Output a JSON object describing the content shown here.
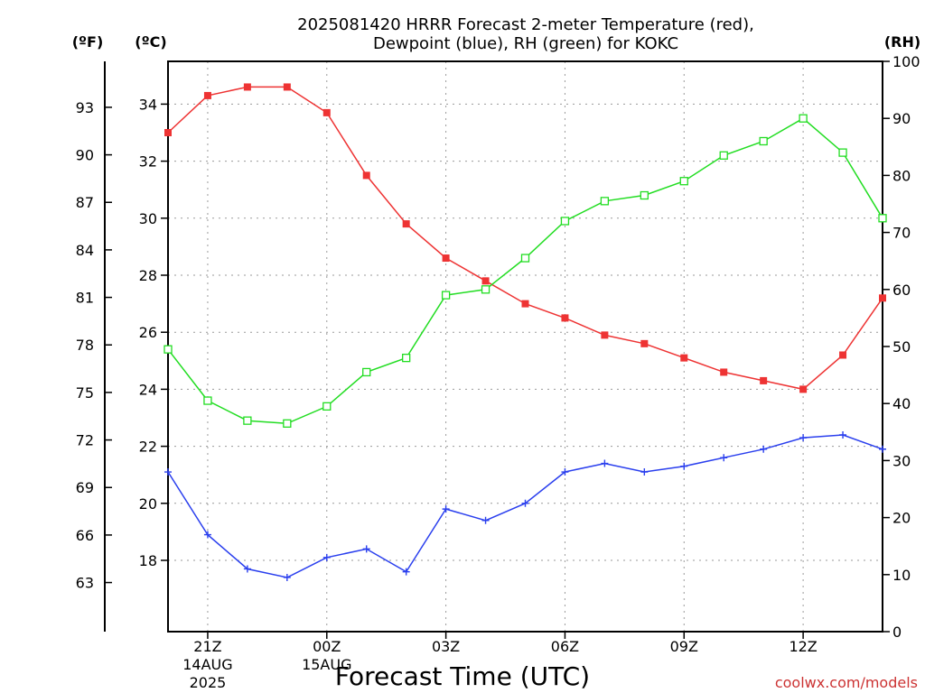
{
  "title_line1": "2025081420 HRRR Forecast 2-meter Temperature (red),",
  "title_line2": "Dewpoint (blue), RH (green) for KOKC",
  "unit_f": "(ºF)",
  "unit_c": "(ºC)",
  "unit_rh": "(RH)",
  "xlabel": "Forecast Time (UTC)",
  "watermark": "coolwx.com/models",
  "colors": {
    "temperature": "#ee3333",
    "dewpoint": "#2a3fee",
    "rh": "#22dd22",
    "grid": "#9a9a9a",
    "watermark": "#cc3333"
  },
  "chart_data": {
    "type": "line",
    "x": [
      20,
      21,
      22,
      23,
      24,
      25,
      26,
      27,
      28,
      29,
      30,
      31,
      32,
      33,
      34,
      35,
      36,
      37,
      38
    ],
    "x_ticks": [
      {
        "x": 21,
        "label": "21Z",
        "sub1": "14AUG",
        "sub2": "2025"
      },
      {
        "x": 24,
        "label": "00Z",
        "sub1": "15AUG",
        "sub2": ""
      },
      {
        "x": 27,
        "label": "03Z",
        "sub1": "",
        "sub2": ""
      },
      {
        "x": 30,
        "label": "06Z",
        "sub1": "",
        "sub2": ""
      },
      {
        "x": 33,
        "label": "09Z",
        "sub1": "",
        "sub2": ""
      },
      {
        "x": 36,
        "label": "12Z",
        "sub1": "",
        "sub2": ""
      }
    ],
    "xlim": [
      20,
      38
    ],
    "y_left_c": {
      "ylim": [
        15.5,
        35.5
      ],
      "ticks": [
        18,
        20,
        22,
        24,
        26,
        28,
        30,
        32,
        34
      ]
    },
    "y_left_f": {
      "ticks": [
        63,
        66,
        69,
        72,
        75,
        78,
        81,
        84,
        87,
        90,
        93
      ]
    },
    "y_right_rh": {
      "ylim": [
        0,
        100
      ],
      "ticks": [
        0,
        10,
        20,
        30,
        40,
        50,
        60,
        70,
        80,
        90,
        100
      ]
    },
    "grid": true,
    "series": [
      {
        "key": "temperature",
        "axis": "c",
        "marker": "filled-square",
        "values": [
          33.0,
          34.3,
          34.6,
          34.6,
          33.7,
          31.5,
          29.8,
          28.6,
          27.8,
          27.0,
          26.5,
          25.9,
          25.6,
          25.1,
          24.6,
          24.3,
          24.0,
          25.2,
          27.2
        ]
      },
      {
        "key": "dewpoint",
        "axis": "c",
        "marker": "plus",
        "values": [
          21.1,
          18.9,
          17.7,
          17.4,
          18.1,
          18.4,
          17.6,
          19.8,
          19.4,
          20.0,
          21.1,
          21.4,
          21.1,
          21.3,
          21.6,
          21.9,
          22.3,
          22.4,
          21.9
        ]
      },
      {
        "key": "rh",
        "axis": "rh",
        "marker": "open-square",
        "values": [
          49.5,
          40.5,
          37.0,
          36.5,
          39.5,
          45.5,
          48.0,
          59.0,
          60.0,
          65.5,
          72.0,
          75.5,
          76.5,
          79.0,
          83.5,
          86.0,
          90.0,
          84.0,
          72.5
        ]
      }
    ]
  }
}
